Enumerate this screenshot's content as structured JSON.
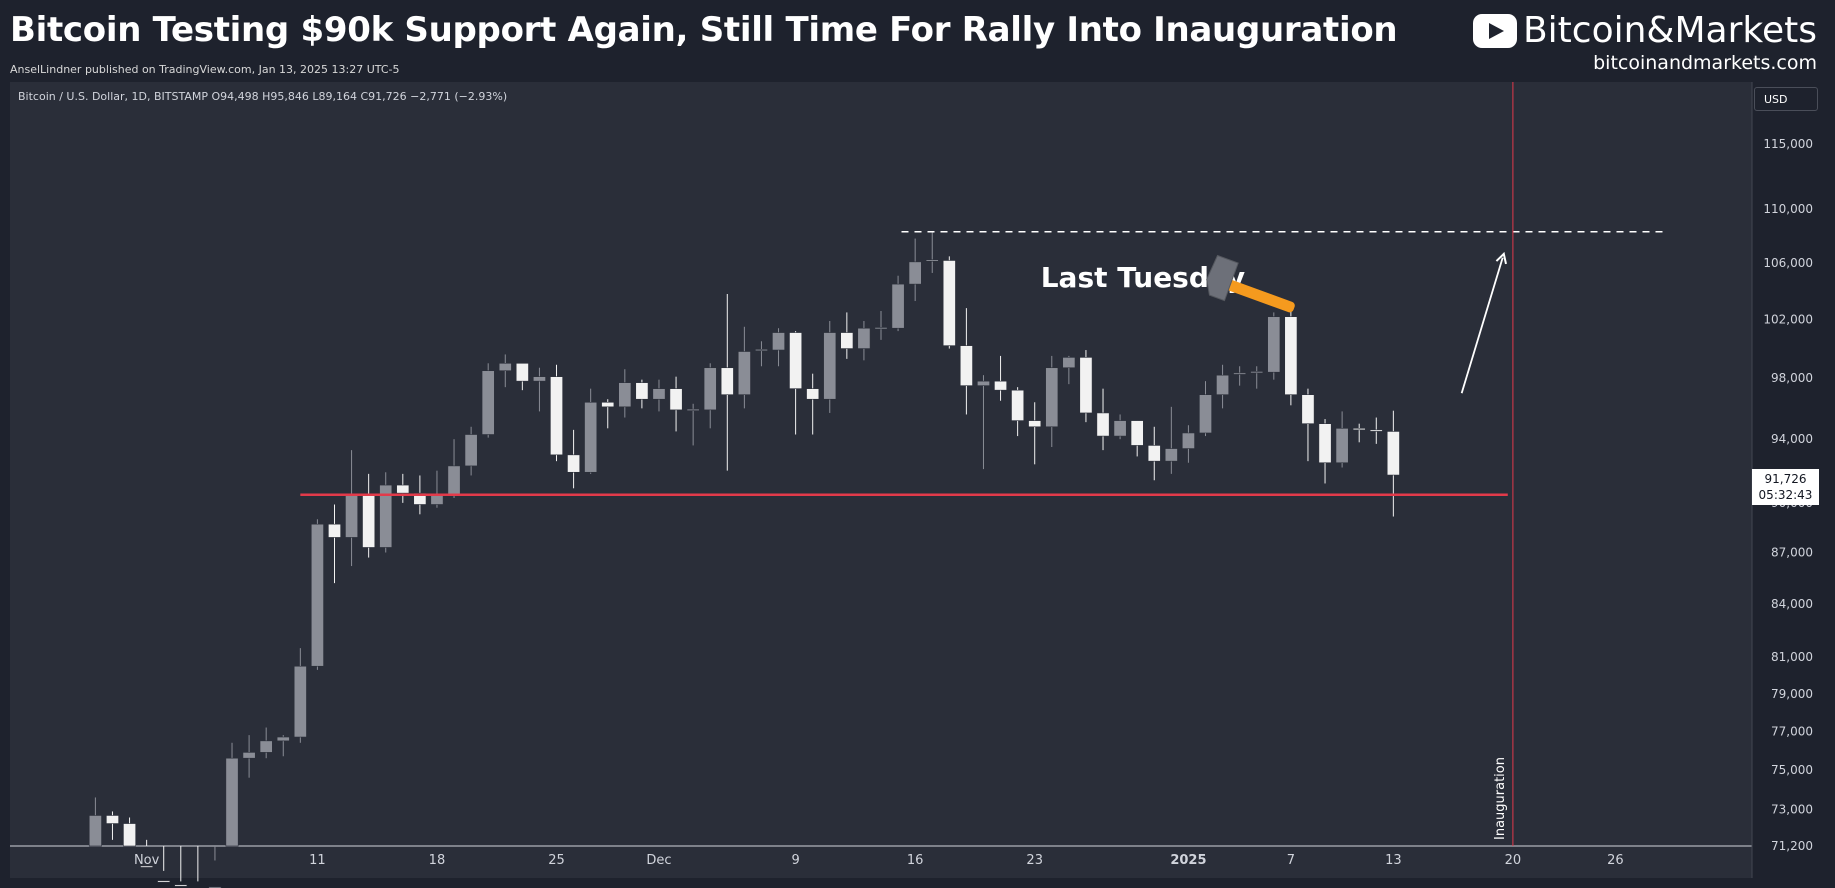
{
  "header": {
    "title": "Bitcoin Testing $90k Support Again, Still Time For Rally Into Inauguration",
    "published": "AnselLindner published on TradingView.com, Jan 13, 2025 13:27 UTC-5",
    "brand_name": "Bitcoin&Markets",
    "brand_url": "bitcoinandmarkets.com"
  },
  "legend": "Bitcoin / U.S. Dollar, 1D, BITSTAMP  O94,498  H95,846  L89,164  C91,726  −2,771 (−2.93%)",
  "currency_button": "USD",
  "last_price": {
    "price": "91,726",
    "countdown": "05:32:43"
  },
  "colors": {
    "bg": "#1e222d",
    "panel": "#2a2e39",
    "up": "#8a8d96",
    "down": "#f2f2f2",
    "support": "#e23a4a",
    "hammer_head": "#6d7079",
    "hammer_handle": "#f59a1e"
  },
  "chart_data": {
    "type": "candlestick",
    "symbol": "Bitcoin / U.S. Dollar",
    "interval": "1D",
    "exchange": "BITSTAMP",
    "y_scale": "log",
    "ylim": [
      71200,
      118500
    ],
    "y_ticks": [
      "115,000",
      "110,000",
      "106,000",
      "102,000",
      "98,000",
      "94,000",
      "90,000",
      "87,000",
      "84,000",
      "81,000",
      "79,000",
      "77,000",
      "75,000",
      "73,000",
      "71,200"
    ],
    "x_ticks": [
      {
        "label": "Nov",
        "date": "2024-11-01"
      },
      {
        "label": "11",
        "date": "2024-11-11"
      },
      {
        "label": "18",
        "date": "2024-11-18"
      },
      {
        "label": "25",
        "date": "2024-11-25"
      },
      {
        "label": "Dec",
        "date": "2024-12-01"
      },
      {
        "label": "9",
        "date": "2024-12-09"
      },
      {
        "label": "16",
        "date": "2024-12-16"
      },
      {
        "label": "23",
        "date": "2024-12-23"
      },
      {
        "label": "2025",
        "date": "2025-01-01"
      },
      {
        "label": "7",
        "date": "2025-01-07"
      },
      {
        "label": "13",
        "date": "2025-01-13"
      },
      {
        "label": "20",
        "date": "2025-01-20"
      },
      {
        "label": "26",
        "date": "2025-01-26"
      }
    ],
    "x_range": [
      "2024-10-24",
      "2025-02-03"
    ],
    "candles": [
      [
        "2024-10-29",
        69900,
        73600,
        69800,
        72700
      ],
      [
        "2024-10-30",
        72700,
        72900,
        71500,
        72300
      ],
      [
        "2024-10-31",
        72300,
        72600,
        69500,
        70200
      ],
      [
        "2024-11-01",
        70200,
        71500,
        69000,
        69500
      ],
      [
        "2024-11-02",
        69500,
        70000,
        68500,
        69300
      ],
      [
        "2024-11-03",
        69300,
        69500,
        66800,
        68700
      ],
      [
        "2024-11-04",
        68700,
        69500,
        66800,
        67800
      ],
      [
        "2024-11-05",
        67800,
        70500,
        67500,
        69200
      ],
      [
        "2024-11-06",
        69200,
        76400,
        68500,
        75600
      ],
      [
        "2024-11-07",
        75600,
        76800,
        74600,
        75900
      ],
      [
        "2024-11-08",
        75900,
        77200,
        75600,
        76500
      ],
      [
        "2024-11-09",
        76500,
        76800,
        75700,
        76700
      ],
      [
        "2024-11-10",
        76700,
        81500,
        76400,
        80500
      ],
      [
        "2024-11-11",
        80500,
        89000,
        80300,
        88700
      ],
      [
        "2024-11-12",
        88700,
        89900,
        85200,
        87900
      ],
      [
        "2024-11-13",
        87900,
        93300,
        86200,
        90500
      ],
      [
        "2024-11-14",
        90500,
        91800,
        86700,
        87300
      ],
      [
        "2024-11-15",
        87300,
        91900,
        87000,
        91100
      ],
      [
        "2024-11-16",
        91100,
        91800,
        90000,
        90600
      ],
      [
        "2024-11-17",
        90600,
        91700,
        89300,
        89900
      ],
      [
        "2024-11-18",
        89900,
        92000,
        89700,
        90500
      ],
      [
        "2024-11-19",
        90500,
        94000,
        90300,
        92300
      ],
      [
        "2024-11-20",
        92300,
        94800,
        91700,
        94300
      ],
      [
        "2024-11-21",
        94300,
        99000,
        94100,
        98500
      ],
      [
        "2024-11-22",
        98500,
        99600,
        97400,
        99000
      ],
      [
        "2024-11-23",
        99000,
        99000,
        97200,
        97800
      ],
      [
        "2024-11-24",
        97800,
        98700,
        95800,
        98100
      ],
      [
        "2024-11-25",
        98100,
        98900,
        92600,
        93000
      ],
      [
        "2024-11-26",
        93000,
        94600,
        90900,
        91900
      ],
      [
        "2024-11-27",
        91900,
        97300,
        91800,
        96400
      ],
      [
        "2024-11-28",
        96400,
        96600,
        94700,
        96100
      ],
      [
        "2024-11-29",
        96100,
        98600,
        95400,
        97700
      ],
      [
        "2024-11-30",
        97700,
        97900,
        96000,
        96600
      ],
      [
        "2024-12-01",
        96600,
        97900,
        95800,
        97300
      ],
      [
        "2024-12-02",
        97300,
        98100,
        94500,
        95900
      ],
      [
        "2024-12-03",
        95900,
        96300,
        93600,
        95900
      ],
      [
        "2024-12-04",
        95900,
        99000,
        94700,
        98700
      ],
      [
        "2024-12-05",
        98700,
        103800,
        92000,
        96900
      ],
      [
        "2024-12-06",
        96900,
        101500,
        96000,
        99800
      ],
      [
        "2024-12-07",
        99800,
        100500,
        98800,
        99900
      ],
      [
        "2024-12-08",
        99900,
        101400,
        98800,
        101100
      ],
      [
        "2024-12-09",
        101100,
        101200,
        94300,
        97300
      ],
      [
        "2024-12-10",
        97300,
        98300,
        94300,
        96600
      ],
      [
        "2024-12-11",
        96600,
        101900,
        95700,
        101100
      ],
      [
        "2024-12-12",
        101100,
        102500,
        99300,
        100000
      ],
      [
        "2024-12-13",
        100000,
        101900,
        99200,
        101400
      ],
      [
        "2024-12-14",
        101400,
        102600,
        100600,
        101400
      ],
      [
        "2024-12-15",
        101400,
        105100,
        101200,
        104500
      ],
      [
        "2024-12-16",
        104500,
        107800,
        103300,
        106100
      ],
      [
        "2024-12-17",
        106100,
        108300,
        105300,
        106200
      ],
      [
        "2024-12-18",
        106200,
        106500,
        100000,
        100200
      ],
      [
        "2024-12-19",
        100200,
        102800,
        95600,
        97500
      ],
      [
        "2024-12-20",
        97500,
        98200,
        92100,
        97800
      ],
      [
        "2024-12-21",
        97800,
        99500,
        96500,
        97200
      ],
      [
        "2024-12-22",
        97200,
        97400,
        94200,
        95200
      ],
      [
        "2024-12-23",
        95200,
        96400,
        92400,
        94800
      ],
      [
        "2024-12-24",
        94800,
        99500,
        93500,
        98700
      ],
      [
        "2024-12-25",
        98700,
        99500,
        97600,
        99400
      ],
      [
        "2024-12-26",
        99400,
        99900,
        95100,
        95700
      ],
      [
        "2024-12-27",
        95700,
        97300,
        93300,
        94200
      ],
      [
        "2024-12-28",
        94200,
        95600,
        94000,
        95200
      ],
      [
        "2024-12-29",
        95200,
        95200,
        92900,
        93600
      ],
      [
        "2024-12-30",
        93600,
        94800,
        91400,
        92600
      ],
      [
        "2024-12-31",
        92600,
        96100,
        91800,
        93400
      ],
      [
        "2025-01-01",
        93400,
        94900,
        92500,
        94400
      ],
      [
        "2025-01-02",
        94400,
        97800,
        94200,
        96900
      ],
      [
        "2025-01-03",
        96900,
        98900,
        96000,
        98200
      ],
      [
        "2025-01-04",
        98200,
        98800,
        97500,
        98300
      ],
      [
        "2025-01-05",
        98300,
        98800,
        97300,
        98400
      ],
      [
        "2025-01-06",
        98400,
        102500,
        97900,
        102200
      ],
      [
        "2025-01-07",
        102200,
        102700,
        96200,
        96900
      ],
      [
        "2025-01-08",
        96900,
        97300,
        92600,
        95000
      ],
      [
        "2025-01-09",
        95000,
        95300,
        91200,
        92500
      ],
      [
        "2025-01-10",
        92500,
        95800,
        92200,
        94700
      ],
      [
        "2025-01-11",
        94700,
        95000,
        93800,
        94600
      ],
      [
        "2025-01-12",
        94600,
        95400,
        93700,
        94500
      ],
      [
        "2025-01-13",
        94498,
        95846,
        89164,
        91726
      ]
    ],
    "support_level": 90500,
    "resistance_level": 108300,
    "event_line": {
      "date": "2025-01-20",
      "label": "Inauguration"
    },
    "annotations": [
      "Last Tuesday"
    ]
  }
}
